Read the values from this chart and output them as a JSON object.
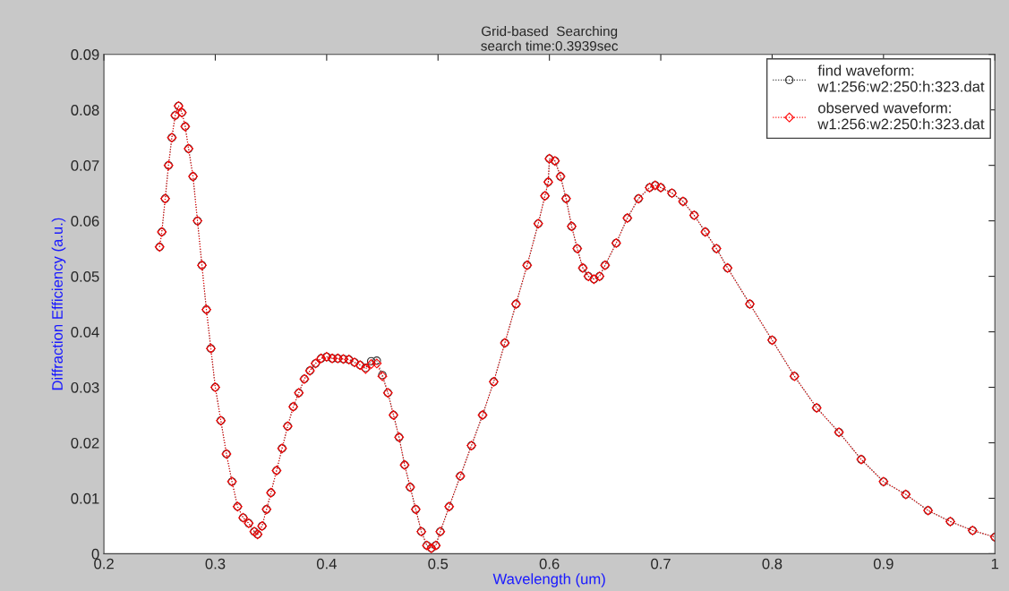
{
  "chart_data": {
    "type": "line",
    "title": "Grid-based  Searching",
    "subtitle": "search time:0.3939sec",
    "xlabel": "Wavelength (um)",
    "ylabel": "Diffraction Efficiency (a.u.)",
    "x": [
      0.25,
      0.252,
      0.255,
      0.258,
      0.261,
      0.264,
      0.267,
      0.27,
      0.273,
      0.276,
      0.28,
      0.284,
      0.288,
      0.292,
      0.296,
      0.3,
      0.305,
      0.31,
      0.315,
      0.32,
      0.325,
      0.33,
      0.335,
      0.338,
      0.342,
      0.346,
      0.35,
      0.355,
      0.36,
      0.365,
      0.37,
      0.375,
      0.38,
      0.385,
      0.39,
      0.395,
      0.4,
      0.405,
      0.41,
      0.415,
      0.42,
      0.425,
      0.43,
      0.435,
      0.44,
      0.445,
      0.45,
      0.455,
      0.46,
      0.465,
      0.47,
      0.475,
      0.48,
      0.485,
      0.49,
      0.494,
      0.498,
      0.502,
      0.51,
      0.52,
      0.53,
      0.54,
      0.55,
      0.56,
      0.57,
      0.58,
      0.59,
      0.596,
      0.599,
      0.6,
      0.605,
      0.61,
      0.615,
      0.62,
      0.625,
      0.63,
      0.635,
      0.64,
      0.645,
      0.65,
      0.66,
      0.67,
      0.68,
      0.69,
      0.695,
      0.7,
      0.71,
      0.72,
      0.73,
      0.74,
      0.75,
      0.76,
      0.78,
      0.8,
      0.82,
      0.84,
      0.86,
      0.88,
      0.9,
      0.92,
      0.94,
      0.96,
      0.98,
      1.0
    ],
    "series": [
      {
        "name": "find waveform:\nw1:256:w2:250:h:323.dat",
        "color": "#333333",
        "marker": "circle",
        "values": [
          0.0553,
          0.058,
          0.064,
          0.07,
          0.075,
          0.079,
          0.0807,
          0.0795,
          0.077,
          0.073,
          0.068,
          0.06,
          0.052,
          0.044,
          0.037,
          0.03,
          0.024,
          0.018,
          0.013,
          0.0085,
          0.0065,
          0.0055,
          0.004,
          0.0035,
          0.005,
          0.008,
          0.011,
          0.015,
          0.019,
          0.023,
          0.0265,
          0.029,
          0.0315,
          0.033,
          0.0343,
          0.0352,
          0.0355,
          0.0352,
          0.0352,
          0.0351,
          0.035,
          0.0345,
          0.034,
          0.0335,
          0.0347,
          0.0348,
          0.0322,
          0.029,
          0.025,
          0.021,
          0.016,
          0.012,
          0.008,
          0.004,
          0.0015,
          0.001,
          0.0015,
          0.004,
          0.0085,
          0.014,
          0.0195,
          0.025,
          0.031,
          0.038,
          0.045,
          0.052,
          0.0595,
          0.0645,
          0.067,
          0.0712,
          0.0708,
          0.068,
          0.064,
          0.059,
          0.055,
          0.0515,
          0.05,
          0.0495,
          0.05,
          0.052,
          0.056,
          0.0605,
          0.064,
          0.066,
          0.0664,
          0.066,
          0.065,
          0.0635,
          0.061,
          0.058,
          0.055,
          0.0515,
          0.045,
          0.0385,
          0.032,
          0.0263,
          0.0219,
          0.017,
          0.013,
          0.0107,
          0.0078,
          0.0058,
          0.0042,
          0.003
        ]
      },
      {
        "name": "observed waveform:\nw1:256:w2:250:h:323.dat",
        "color": "#ff0000",
        "marker": "diamond",
        "values": [
          0.0553,
          0.058,
          0.064,
          0.07,
          0.075,
          0.079,
          0.0807,
          0.0795,
          0.077,
          0.073,
          0.068,
          0.06,
          0.052,
          0.044,
          0.037,
          0.03,
          0.024,
          0.018,
          0.013,
          0.0085,
          0.0065,
          0.0055,
          0.004,
          0.0035,
          0.005,
          0.008,
          0.011,
          0.015,
          0.019,
          0.023,
          0.0265,
          0.029,
          0.0315,
          0.033,
          0.0343,
          0.0352,
          0.0355,
          0.0352,
          0.0352,
          0.0351,
          0.035,
          0.0345,
          0.034,
          0.0333,
          0.0342,
          0.0343,
          0.032,
          0.029,
          0.025,
          0.021,
          0.016,
          0.012,
          0.008,
          0.004,
          0.0015,
          0.001,
          0.0015,
          0.004,
          0.0085,
          0.014,
          0.0195,
          0.025,
          0.031,
          0.038,
          0.045,
          0.052,
          0.0595,
          0.0645,
          0.067,
          0.0712,
          0.0708,
          0.068,
          0.064,
          0.059,
          0.055,
          0.0515,
          0.05,
          0.0495,
          0.05,
          0.052,
          0.056,
          0.0605,
          0.064,
          0.066,
          0.0664,
          0.066,
          0.065,
          0.0635,
          0.061,
          0.058,
          0.055,
          0.0515,
          0.045,
          0.0385,
          0.032,
          0.0263,
          0.0219,
          0.017,
          0.013,
          0.0107,
          0.0078,
          0.0058,
          0.0042,
          0.003
        ]
      }
    ],
    "xlim": [
      0.2,
      1
    ],
    "xticks": [
      0.2,
      0.3,
      0.4,
      0.5,
      0.6,
      0.7,
      0.8,
      0.9,
      1
    ],
    "ylim": [
      0,
      0.09
    ],
    "yticks": [
      0,
      0.01,
      0.02,
      0.03,
      0.04,
      0.05,
      0.06,
      0.07,
      0.08,
      0.09
    ],
    "line_style": "dotted",
    "grid": false,
    "legend": "top right"
  }
}
